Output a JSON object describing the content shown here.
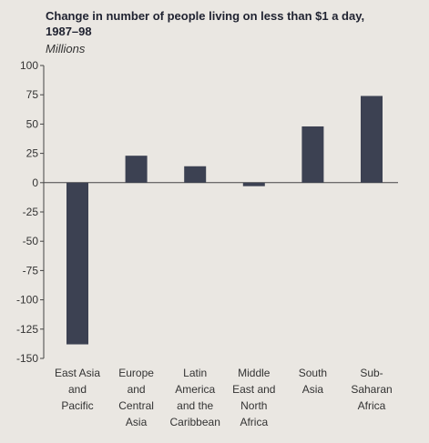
{
  "title_line1": "Change in number of people living on less than $1 a day,",
  "title_line2": "1987–98",
  "units": "Millions",
  "chart_data": {
    "type": "bar",
    "title": "Change in number of people living on less than $1 a day, 1987–98",
    "ylabel": "Millions",
    "xlabel": "",
    "ylim": [
      -150,
      100
    ],
    "yticks": [
      100,
      75,
      50,
      25,
      0,
      -25,
      -50,
      -75,
      -100,
      -125,
      -150
    ],
    "ytick_labels": [
      "100",
      "75",
      "50",
      "25",
      "0",
      "-25",
      "-50",
      "-75",
      "-100",
      "-125",
      "-150"
    ],
    "categories": [
      [
        "East Asia",
        "and",
        "Pacific"
      ],
      [
        "Europe",
        "and",
        "Central",
        "Asia"
      ],
      [
        "Latin",
        "America",
        "and the",
        "Caribbean"
      ],
      [
        "Middle",
        "East and",
        "North",
        "Africa"
      ],
      [
        "South",
        "Asia"
      ],
      [
        "Sub-",
        "Saharan",
        "Africa"
      ]
    ],
    "values": [
      -138,
      23,
      14,
      -3,
      48,
      74
    ],
    "bar_color": "#3c4152",
    "grid": false,
    "legend": "none"
  }
}
